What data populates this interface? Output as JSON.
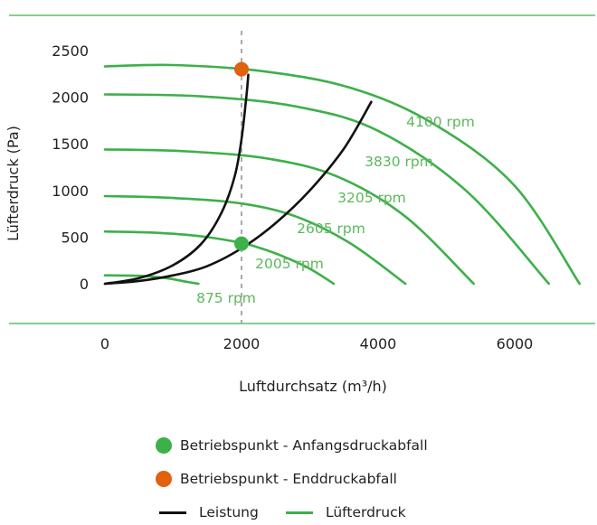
{
  "chart_data": {
    "type": "line",
    "xlabel": "Luftdurchsatz (m³/h)",
    "ylabel": "Lüfterdruck (Pa)",
    "xlim": [
      0,
      7000
    ],
    "ylim": [
      -50,
      2600
    ],
    "x_ticks": [
      "0",
      "2000",
      "4000",
      "6000"
    ],
    "y_ticks": [
      "0",
      "500",
      "1000",
      "1500",
      "2000",
      "2500"
    ],
    "grid": false,
    "reference_line": {
      "x": 2000,
      "style": "dashed"
    },
    "series": [
      {
        "name": "875 rpm",
        "type": "fan",
        "points": [
          [
            0,
            90
          ],
          [
            500,
            85
          ],
          [
            900,
            60
          ],
          [
            1200,
            20
          ],
          [
            1370,
            0
          ]
        ]
      },
      {
        "name": "2005 rpm",
        "type": "fan",
        "points": [
          [
            0,
            560
          ],
          [
            800,
            545
          ],
          [
            1500,
            500
          ],
          [
            2200,
            400
          ],
          [
            2900,
            200
          ],
          [
            3350,
            0
          ]
        ]
      },
      {
        "name": "2605 rpm",
        "type": "fan",
        "points": [
          [
            0,
            940
          ],
          [
            1000,
            920
          ],
          [
            2000,
            860
          ],
          [
            2800,
            720
          ],
          [
            3600,
            430
          ],
          [
            4400,
            0
          ]
        ]
      },
      {
        "name": "3205 rpm",
        "type": "fan",
        "points": [
          [
            0,
            1440
          ],
          [
            1200,
            1420
          ],
          [
            2400,
            1340
          ],
          [
            3400,
            1150
          ],
          [
            4400,
            720
          ],
          [
            5400,
            0
          ]
        ]
      },
      {
        "name": "3830 rpm",
        "type": "fan",
        "points": [
          [
            0,
            2030
          ],
          [
            1400,
            2010
          ],
          [
            2800,
            1900
          ],
          [
            4000,
            1640
          ],
          [
            5300,
            990
          ],
          [
            6500,
            0
          ]
        ]
      },
      {
        "name": "4100 rpm",
        "type": "fan",
        "points": [
          [
            0,
            2330
          ],
          [
            1000,
            2345
          ],
          [
            2300,
            2280
          ],
          [
            3600,
            2100
          ],
          [
            4800,
            1720
          ],
          [
            6000,
            1050
          ],
          [
            6950,
            0
          ]
        ]
      },
      {
        "name": "",
        "type": "system",
        "points": [
          [
            0,
            0
          ],
          [
            500,
            60
          ],
          [
            1000,
            200
          ],
          [
            1400,
            420
          ],
          [
            1700,
            750
          ],
          [
            1900,
            1150
          ],
          [
            2000,
            1550
          ],
          [
            2070,
            2000
          ],
          [
            2100,
            2240
          ]
        ]
      },
      {
        "name": "",
        "type": "system",
        "points": [
          [
            0,
            0
          ],
          [
            500,
            30
          ],
          [
            1000,
            90
          ],
          [
            1500,
            190
          ],
          [
            2000,
            380
          ],
          [
            2500,
            650
          ],
          [
            3000,
            1000
          ],
          [
            3500,
            1450
          ],
          [
            3900,
            1950
          ]
        ]
      }
    ],
    "markers": [
      {
        "name": "Betriebspunkt - Anfangsdruckabfall",
        "x": 2000,
        "y": 430,
        "color": "#3db04a"
      },
      {
        "name": "Betriebspunkt - Enddruckabfall",
        "x": 2000,
        "y": 2300,
        "color": "#e0620d"
      }
    ],
    "colors": {
      "fan_curve": "#3db04a",
      "system_curve": "#111111",
      "rpm_label": "#5cb85c",
      "reference_line": "#aaaaaa",
      "frame_line": "#3db04a"
    }
  },
  "legend": {
    "initial_point": "Betriebspunkt - Anfangsdruckabfall",
    "final_point": "Betriebspunkt - Enddruckabfall",
    "performance": "Leistung",
    "fan_pressure": "Lüfterdruck"
  }
}
